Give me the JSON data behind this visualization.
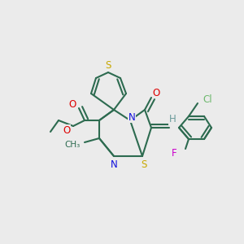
{
  "background_color": "#ebebeb",
  "bond_color": "#2d6b50",
  "atom_colors": {
    "S": "#c8a800",
    "N": "#1010dd",
    "O": "#dd0000",
    "F": "#cc00cc",
    "Cl": "#6db86d",
    "H": "#6b9b9b",
    "C": "#2d6b50"
  },
  "figsize": [
    3.0,
    3.0
  ],
  "dpi": 100
}
